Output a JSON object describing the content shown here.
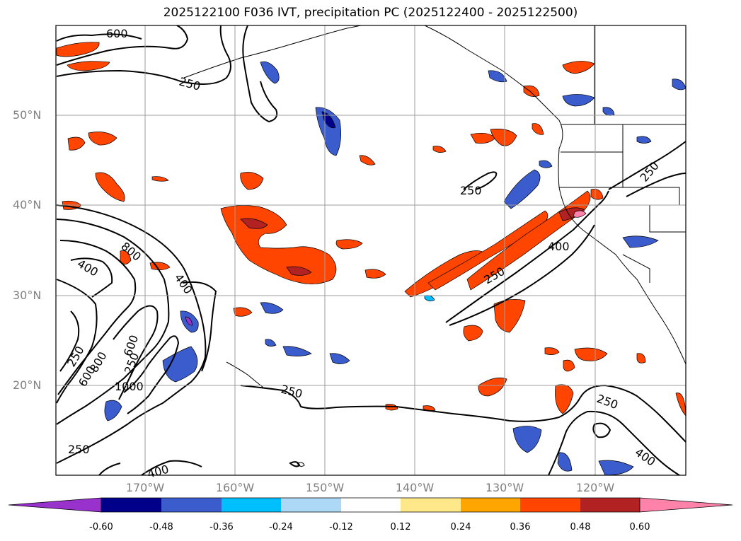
{
  "title": "2025122100 F036 IVT, precipitation PC (2025122400 - 2025122500)",
  "latitude_labels": [
    "50°N",
    "40°N",
    "30°N",
    "20°N"
  ],
  "longitude_labels": [
    "170°W",
    "160°W",
    "150°W",
    "140°W",
    "130°W",
    "120°W"
  ],
  "ivt_contour_labels": [
    "600",
    "250",
    "250",
    "800",
    "400",
    "400",
    "250",
    "600",
    "800",
    "600",
    "1000",
    "250",
    "250",
    "400",
    "250",
    "250",
    "400",
    "250",
    "400",
    "250"
  ],
  "colorbar": {
    "ticks": [
      "-0.60",
      "-0.48",
      "-0.36",
      "-0.24",
      "-0.12",
      "0.12",
      "0.24",
      "0.36",
      "0.48",
      "0.60"
    ],
    "colors": [
      "#9932cc",
      "#00008b",
      "#3a5ccc",
      "#00bfff",
      "#add8f6",
      "#ffffff",
      "#ffe88a",
      "#ffa500",
      "#ff4500",
      "#b22222",
      "#ff82ab"
    ]
  }
}
